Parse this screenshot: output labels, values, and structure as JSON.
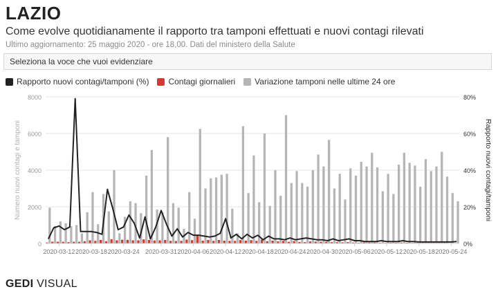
{
  "header": {
    "title": "LAZIO",
    "subtitle": "Come evolve quotidianamente il rapporto tra tamponi effettuati e nuovi contagi rilevati",
    "updated": "Ultimo aggiornamento: 25 maggio 2020 - ore 18,00. Dati del ministero della Salute"
  },
  "selector": {
    "placeholder": "Seleziona la voce che vuoi evidenziare"
  },
  "legend": [
    {
      "label": "Rapporto nuovi contagi/tamponi (%)",
      "color": "#222222"
    },
    {
      "label": "Contagi giornalieri",
      "color": "#d33b32"
    },
    {
      "label": "Variazione tamponi nelle ultime 24 ore",
      "color": "#b5b5b5"
    }
  ],
  "footer": {
    "brand": "GEDI",
    "suffix": "VISUAL"
  },
  "chart_data": {
    "type": "bar",
    "x": [
      "2020-03-10",
      "2020-03-11",
      "2020-03-12",
      "2020-03-13",
      "2020-03-14",
      "2020-03-15",
      "2020-03-16",
      "2020-03-17",
      "2020-03-18",
      "2020-03-19",
      "2020-03-20",
      "2020-03-21",
      "2020-03-22",
      "2020-03-23",
      "2020-03-24",
      "2020-03-25",
      "2020-03-26",
      "2020-03-27",
      "2020-03-28",
      "2020-03-29",
      "2020-03-30",
      "2020-03-31",
      "2020-04-01",
      "2020-04-02",
      "2020-04-03",
      "2020-04-04",
      "2020-04-05",
      "2020-04-06",
      "2020-04-07",
      "2020-04-08",
      "2020-04-09",
      "2020-04-10",
      "2020-04-11",
      "2020-04-12",
      "2020-04-13",
      "2020-04-14",
      "2020-04-15",
      "2020-04-16",
      "2020-04-17",
      "2020-04-18",
      "2020-04-19",
      "2020-04-20",
      "2020-04-21",
      "2020-04-22",
      "2020-04-23",
      "2020-04-24",
      "2020-04-25",
      "2020-04-26",
      "2020-04-27",
      "2020-04-28",
      "2020-04-29",
      "2020-04-30",
      "2020-05-01",
      "2020-05-02",
      "2020-05-03",
      "2020-05-04",
      "2020-05-05",
      "2020-05-06",
      "2020-05-07",
      "2020-05-08",
      "2020-05-09",
      "2020-05-10",
      "2020-05-11",
      "2020-05-12",
      "2020-05-13",
      "2020-05-14",
      "2020-05-15",
      "2020-05-16",
      "2020-05-17",
      "2020-05-18",
      "2020-05-19",
      "2020-05-20",
      "2020-05-21",
      "2020-05-22",
      "2020-05-23",
      "2020-05-24",
      "2020-05-25"
    ],
    "x_ticks": [
      "2020-03-12",
      "2020-03-18",
      "2020-03-24",
      "2020-03-31",
      "2020-04-06",
      "2020-04-12",
      "2020-04-18",
      "2020-04-24",
      "2020-04-30",
      "2020-05-06",
      "2020-05-12",
      "2020-05-18",
      "2020-05-24"
    ],
    "series": [
      {
        "name": "Variazione tamponi nelle ultime 24 ore",
        "axis": "left",
        "kind": "bar",
        "values": [
          1950,
          950,
          1200,
          1100,
          950,
          1000,
          550,
          1700,
          2800,
          1050,
          2700,
          1750,
          4000,
          550,
          1450,
          2300,
          2200,
          1650,
          3700,
          5100,
          1850,
          1700,
          5800,
          2200,
          1950,
          800,
          2800,
          1350,
          6250,
          3000,
          3550,
          3600,
          3750,
          3800,
          1900,
          550,
          6400,
          2750,
          4800,
          2250,
          6000,
          2050,
          4000,
          2600,
          7000,
          3300,
          3950,
          3300,
          3100,
          4000,
          4850,
          4200,
          5650,
          3000,
          3800,
          2400,
          4100,
          3700,
          4450,
          4200,
          4950,
          4150,
          2850,
          3800,
          2700,
          4300,
          4950,
          4400,
          4250,
          3100,
          4600,
          3950,
          4200,
          5000,
          3650,
          2750,
          2300
        ]
      },
      {
        "name": "Contagi giornalieri",
        "axis": "left",
        "kind": "bar",
        "values": [
          50,
          95,
          95,
          90,
          70,
          90,
          90,
          120,
          170,
          140,
          190,
          120,
          230,
          170,
          200,
          195,
          170,
          170,
          220,
          190,
          160,
          170,
          190,
          140,
          130,
          140,
          210,
          180,
          440,
          150,
          190,
          140,
          190,
          150,
          140,
          140,
          180,
          150,
          180,
          140,
          210,
          120,
          150,
          110,
          140,
          90,
          130,
          80,
          70,
          110,
          100,
          95,
          90,
          70,
          70,
          60,
          70,
          50,
          40,
          60,
          50,
          50,
          40,
          30,
          40,
          40,
          50,
          40,
          30,
          30,
          30,
          30,
          30,
          30,
          30,
          20,
          20
        ]
      },
      {
        "name": "Rapporto nuovi contagi/tamponi (%)",
        "axis": "right",
        "kind": "line",
        "values": [
          2.5,
          8.5,
          9.5,
          7.5,
          9.0,
          79.0,
          6.5,
          6.5,
          6.5,
          6.0,
          5.0,
          29.5,
          19.0,
          7.5,
          9.0,
          15.5,
          11.0,
          3.0,
          14.5,
          2.5,
          9.0,
          18.0,
          10.5,
          4.0,
          8.0,
          3.5,
          6.0,
          4.5,
          4.5,
          4.0,
          3.5,
          4.0,
          5.5,
          13.5,
          3.0,
          5.0,
          2.5,
          5.0,
          3.0,
          4.5,
          2.0,
          4.0,
          2.5,
          2.5,
          2.0,
          3.0,
          2.0,
          2.5,
          3.0,
          2.5,
          2.0,
          2.0,
          1.5,
          2.5,
          1.5,
          2.0,
          2.5,
          1.5,
          1.5,
          1.0,
          1.0,
          1.0,
          1.5,
          1.0,
          1.0,
          1.0,
          1.5,
          1.0,
          1.0,
          0.8,
          0.8,
          0.8,
          0.8,
          0.8,
          0.8,
          0.8,
          1.0
        ]
      }
    ],
    "ylabel": "Numero nuovi contagi e tamponi",
    "ylabel_right": "Rapporto nuovi contagi/tamponi",
    "ylim": [
      0,
      8000
    ],
    "yticks": [
      0,
      2000,
      4000,
      6000,
      8000
    ],
    "ylim_right": [
      0,
      80
    ],
    "yticks_right": [
      "0%",
      "20%",
      "40%",
      "60%",
      "80%"
    ],
    "grid": true
  }
}
